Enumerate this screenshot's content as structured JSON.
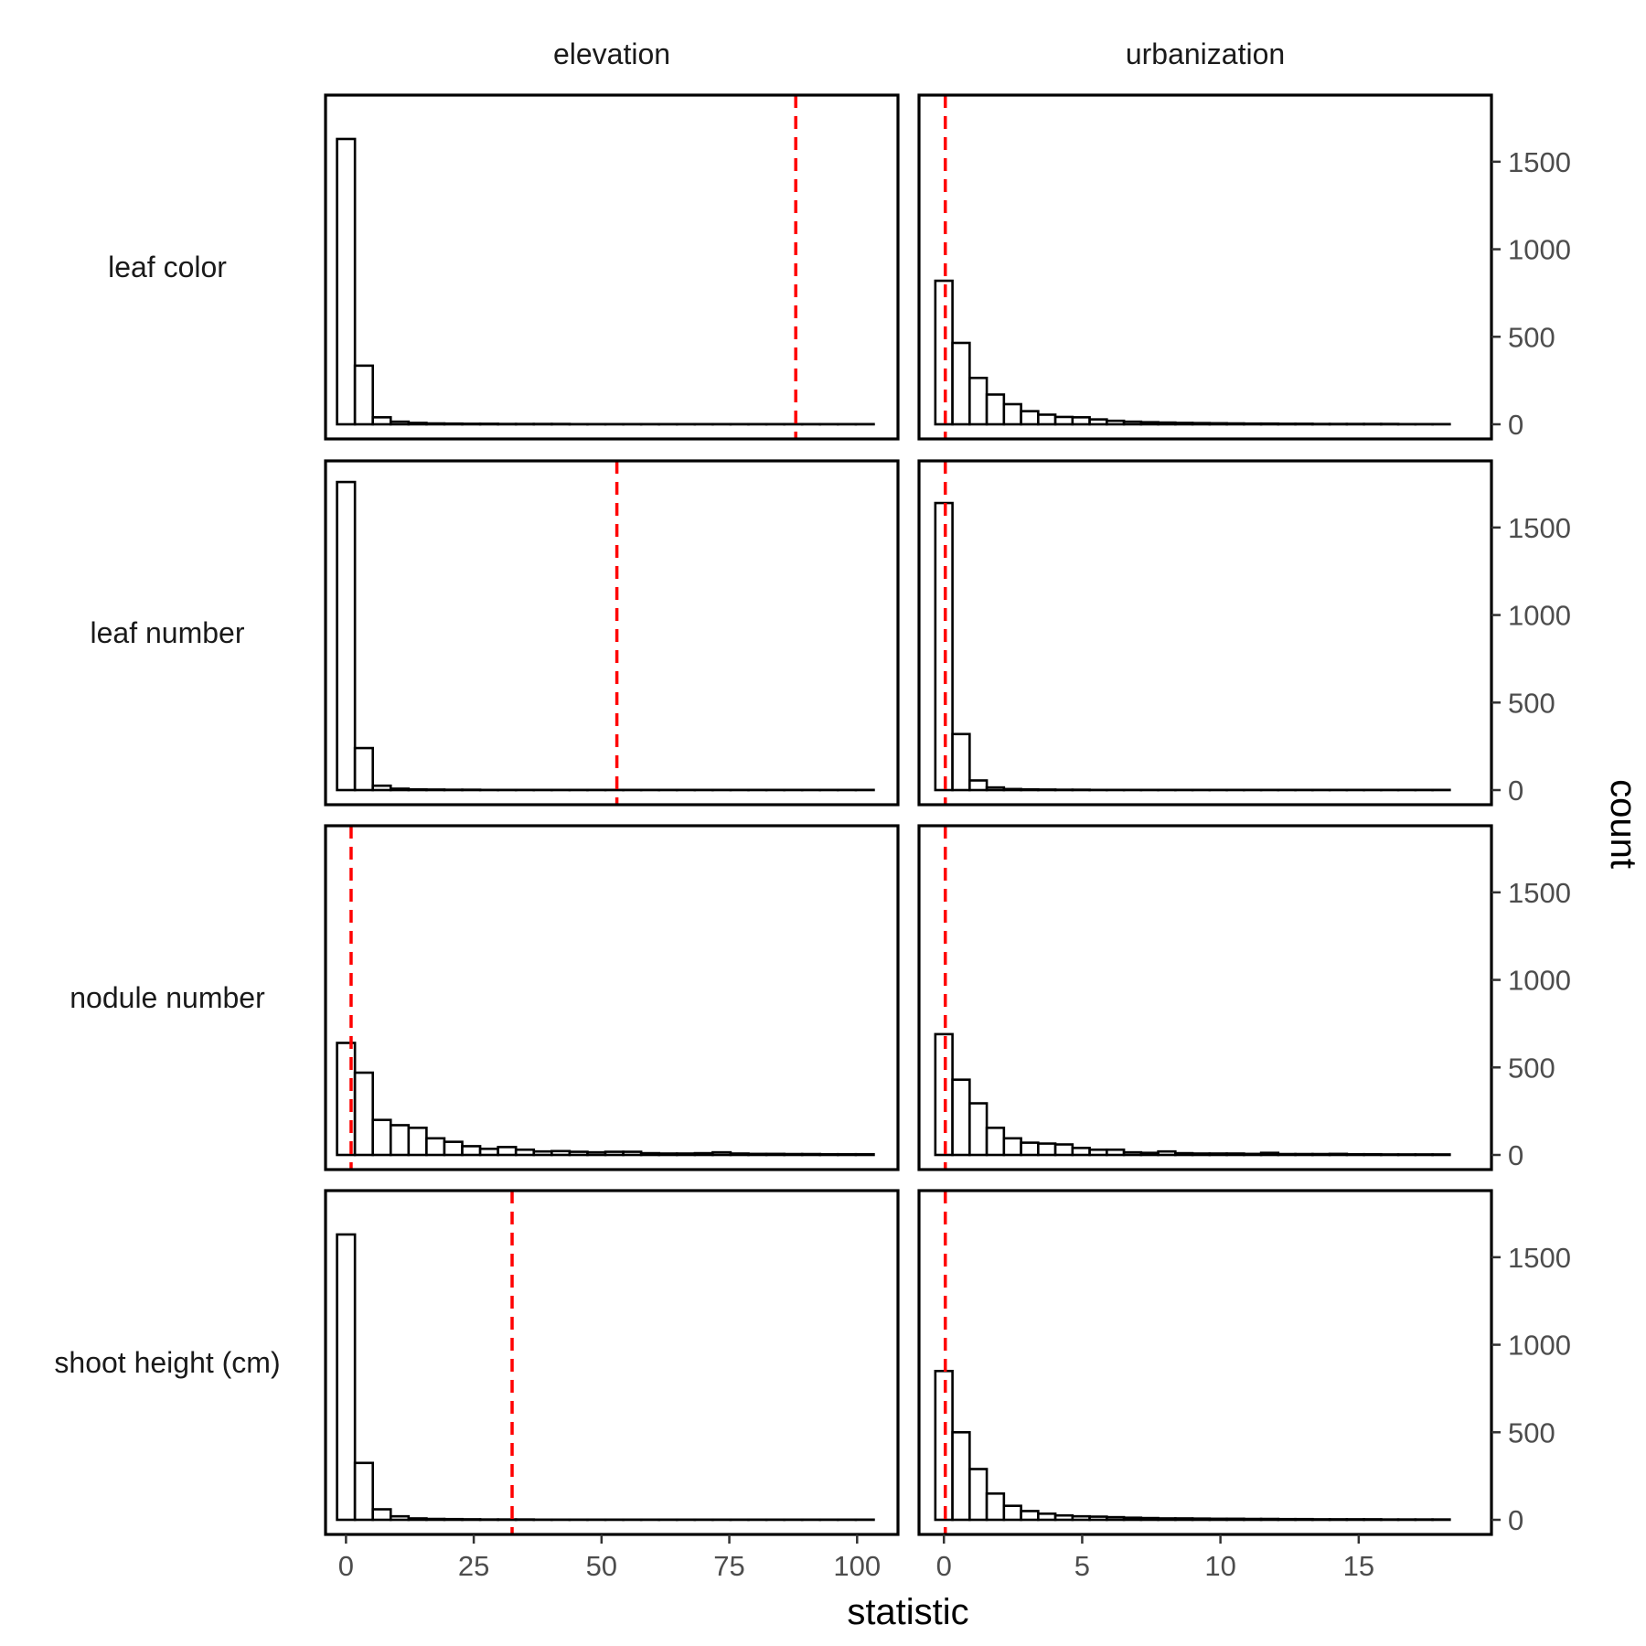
{
  "chart_data": {
    "type": "bar",
    "subtype": "faceted-histogram",
    "x_axis_title": "statistic",
    "y_axis_title": "count",
    "y_axis_position": "right",
    "y_ticks": [
      0,
      500,
      1000,
      1500
    ],
    "ylim": [
      0,
      1750
    ],
    "grid": false,
    "reference_line_color": "#ff0000",
    "bar_fill": "#ffffff",
    "bar_stroke": "#000000",
    "columns": [
      {
        "label": "elevation",
        "xlim": [
          -4,
          108
        ],
        "x_ticks": [
          0,
          25,
          50,
          75,
          100
        ],
        "x_tick_labels": [
          "0",
          "25",
          "50",
          "75",
          "100"
        ]
      },
      {
        "label": "urbanization",
        "xlim": [
          -0.9,
          19.8
        ],
        "x_ticks": [
          0,
          5,
          10,
          15
        ],
        "x_tick_labels": [
          "0",
          "5",
          "10",
          "15"
        ]
      }
    ],
    "rows": [
      "leaf color",
      "leaf number",
      "nodule number",
      "shoot height (cm)"
    ],
    "panels": [
      {
        "row": "leaf color",
        "column": "elevation",
        "bin_start": -1.75,
        "bin_width": 3.5,
        "counts": [
          1630,
          335,
          40,
          15,
          8,
          5,
          4,
          3,
          3,
          2,
          2,
          2,
          2,
          1,
          1,
          1,
          1,
          1,
          1,
          1,
          1,
          1,
          1,
          1,
          1,
          1,
          1,
          1,
          1,
          1
        ],
        "reference_line": 88
      },
      {
        "row": "leaf color",
        "column": "urbanization",
        "bin_start": -0.31,
        "bin_width": 0.62,
        "counts": [
          820,
          465,
          265,
          170,
          115,
          75,
          55,
          42,
          40,
          28,
          20,
          15,
          12,
          10,
          8,
          7,
          6,
          5,
          4,
          4,
          3,
          3,
          2,
          2,
          2,
          2,
          2,
          1,
          1,
          1
        ],
        "reference_line": 0.05
      },
      {
        "row": "leaf number",
        "column": "elevation",
        "bin_start": -1.75,
        "bin_width": 3.5,
        "counts": [
          1760,
          240,
          25,
          8,
          4,
          3,
          2,
          2,
          1,
          1,
          1,
          1,
          1,
          1,
          1,
          1,
          1,
          1,
          1,
          1,
          1,
          1,
          1,
          1,
          1,
          1,
          1,
          1,
          1,
          1
        ],
        "reference_line": 53
      },
      {
        "row": "leaf number",
        "column": "urbanization",
        "bin_start": -0.31,
        "bin_width": 0.62,
        "counts": [
          1640,
          320,
          55,
          15,
          6,
          4,
          3,
          2,
          2,
          1,
          1,
          1,
          1,
          1,
          1,
          1,
          1,
          1,
          1,
          1,
          1,
          1,
          1,
          1,
          1,
          1,
          1,
          1,
          1,
          1
        ],
        "reference_line": 0.05
      },
      {
        "row": "nodule number",
        "column": "elevation",
        "bin_start": -1.75,
        "bin_width": 3.5,
        "counts": [
          640,
          470,
          200,
          170,
          155,
          95,
          75,
          50,
          35,
          45,
          30,
          20,
          22,
          18,
          15,
          18,
          18,
          10,
          8,
          8,
          10,
          15,
          8,
          6,
          6,
          5,
          5,
          4,
          4,
          4
        ],
        "reference_line": 1
      },
      {
        "row": "nodule number",
        "column": "urbanization",
        "bin_start": -0.31,
        "bin_width": 0.62,
        "counts": [
          690,
          430,
          295,
          155,
          95,
          70,
          65,
          60,
          40,
          30,
          30,
          15,
          12,
          20,
          10,
          8,
          8,
          8,
          6,
          12,
          5,
          5,
          5,
          6,
          4,
          4,
          3,
          3,
          3,
          3
        ],
        "reference_line": 0.05
      },
      {
        "row": "shoot height (cm)",
        "column": "elevation",
        "bin_start": -1.75,
        "bin_width": 3.5,
        "counts": [
          1630,
          325,
          60,
          20,
          8,
          5,
          4,
          3,
          2,
          2,
          2,
          1,
          1,
          1,
          1,
          1,
          1,
          1,
          1,
          1,
          1,
          1,
          1,
          1,
          1,
          1,
          1,
          1,
          1,
          1
        ],
        "reference_line": 32.5
      },
      {
        "row": "shoot height (cm)",
        "column": "urbanization",
        "bin_start": -0.31,
        "bin_width": 0.62,
        "counts": [
          850,
          500,
          290,
          150,
          80,
          50,
          35,
          25,
          20,
          18,
          15,
          12,
          10,
          8,
          8,
          7,
          6,
          6,
          5,
          5,
          4,
          4,
          3,
          3,
          3,
          3,
          2,
          2,
          2,
          2
        ],
        "reference_line": 0.05
      }
    ]
  }
}
